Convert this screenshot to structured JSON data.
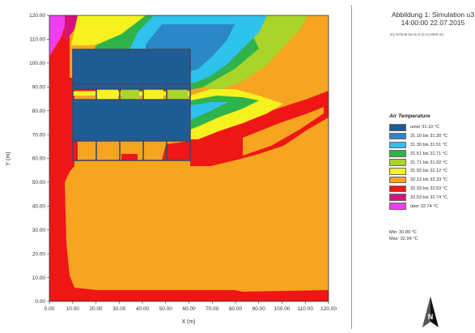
{
  "header": {
    "title_line1": "Abbildung 1: Simulation u3",
    "title_line2": "14:00:00 22.07.2015",
    "subnote": "x/y Schnitt bei k=0 (z=0.2000 m)"
  },
  "legend": {
    "title": "Air Temperature",
    "entries": [
      {
        "label": "unter 31.10 °C",
        "color": "#1f5c93"
      },
      {
        "label": "31.10 bis 31.30 °C",
        "color": "#2a88c7"
      },
      {
        "label": "31.30 bis 31.51 °C",
        "color": "#2ec2ec"
      },
      {
        "label": "31.51 bis 31.71 °C",
        "color": "#2fb34a"
      },
      {
        "label": "31.71 bis 31.92 °C",
        "color": "#a9d42a"
      },
      {
        "label": "31.92 bis 32.12 °C",
        "color": "#f6f21f"
      },
      {
        "label": "32.12 bis 32.33 °C",
        "color": "#f7a421"
      },
      {
        "label": "32.33 bis 32.53 °C",
        "color": "#ef1616"
      },
      {
        "label": "32.53 bis 32.74 °C",
        "color": "#d6137c"
      },
      {
        "label": "über 32.74 °C",
        "color": "#ef3ef1"
      }
    ],
    "min_text": "Min: 30.89 °C",
    "max_text": "Max: 32.94 °C"
  },
  "north_icon": "north-arrow-icon",
  "chart_data": {
    "type": "heatmap",
    "xlabel": "X (m)",
    "ylabel": "Y (m)",
    "xlim": [
      0,
      120
    ],
    "ylim": [
      0,
      120
    ],
    "x_ticks": [
      "0.00",
      "10.00",
      "20.00",
      "30.00",
      "40.00",
      "50.00",
      "60.00",
      "70.00",
      "80.00",
      "90.00",
      "100.00",
      "110.00",
      "120.00"
    ],
    "y_ticks": [
      "0.00",
      "10.00",
      "20.00",
      "30.00",
      "40.00",
      "50.00",
      "60.00",
      "70.00",
      "80.00",
      "90.00",
      "100.00",
      "110.00",
      "120.00"
    ],
    "grid": false,
    "value_range_celsius": [
      30.89,
      32.94
    ],
    "regions": [
      {
        "name": "background",
        "color": "#f7a421",
        "x": [
          0,
          120
        ],
        "y": [
          0,
          120
        ]
      },
      {
        "name": "west-edge-band",
        "color": "#ef1616",
        "x": [
          0,
          10
        ],
        "y": [
          5,
          120
        ]
      },
      {
        "name": "south-band",
        "color": "#ef1616",
        "x": [
          0,
          120
        ],
        "y": [
          0,
          5
        ]
      },
      {
        "name": "northwest-corner",
        "color": "#ef3ef1",
        "x": [
          0,
          8
        ],
        "y": [
          105,
          120
        ]
      },
      {
        "name": "north-plume-green",
        "color": "#2fb34a",
        "x": [
          15,
          100
        ],
        "y": [
          95,
          120
        ]
      },
      {
        "name": "north-plume-cyan",
        "color": "#2ec2ec",
        "x": [
          30,
          90
        ],
        "y": [
          100,
          120
        ]
      },
      {
        "name": "east-plume-red",
        "color": "#ef1616",
        "x": [
          60,
          120
        ],
        "y": [
          60,
          90
        ]
      },
      {
        "name": "east-plume-yellow",
        "color": "#f6f21f",
        "x": [
          60,
          85
        ],
        "y": [
          70,
          90
        ]
      },
      {
        "name": "east-plume-green",
        "color": "#2fb34a",
        "x": [
          60,
          80
        ],
        "y": [
          74,
          87
        ]
      },
      {
        "name": "building-north",
        "color": "#1f5c93",
        "x": [
          10,
          61
        ],
        "y": [
          92,
          110
        ]
      },
      {
        "name": "building-south",
        "color": "#1f5c93",
        "x": [
          10,
          61
        ],
        "y": [
          67,
          85
        ]
      }
    ]
  }
}
